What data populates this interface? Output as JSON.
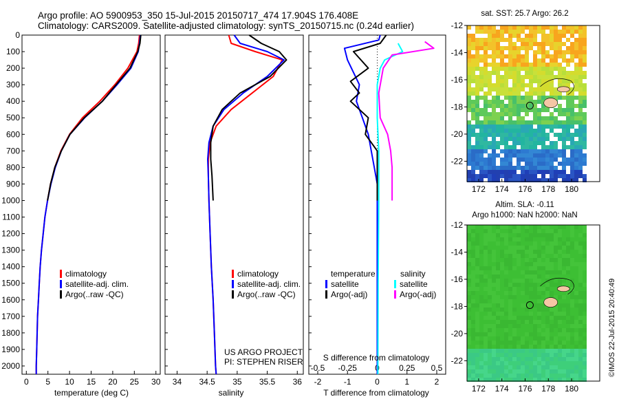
{
  "header": {
    "line1": "Argo profile: AO 5900953_350 15-Jul-2015 20150717_474 17.904S 176.408E",
    "line2": "Climatology: CARS2009. Satellite-adjusted climatology: synTS_20150715.nc (0.24d earlier)"
  },
  "credit": "©IMOS 22-Jul-2015 20:40:49",
  "project": {
    "line1": "US ARGO PROJECT",
    "line2": "PI: STEPHEN RISER"
  },
  "colors": {
    "climatology": "#ff0000",
    "satellite": "#0000ff",
    "argo": "#000000",
    "sal_satellite": "#00ffff",
    "sal_argo": "#ff00ff",
    "land": "#f5c6a5"
  },
  "chart_data": [
    {
      "type": "line",
      "xlabel": "temperature (deg C)",
      "ylabel": "",
      "xlim": [
        -1,
        31
      ],
      "ylim": [
        2050,
        0
      ],
      "xticks": [
        0,
        5,
        10,
        15,
        20,
        25,
        30
      ],
      "yticks": [
        0,
        100,
        200,
        300,
        400,
        500,
        600,
        700,
        800,
        900,
        1000,
        1100,
        1200,
        1300,
        1400,
        1500,
        1600,
        1700,
        1800,
        1900,
        2000
      ],
      "legend": [
        "climatology",
        "satellite-adj. clim.",
        "Argo(..raw -QC)"
      ],
      "series": [
        {
          "name": "climatology",
          "color": "#ff0000",
          "points": [
            [
              26.2,
              0
            ],
            [
              26.0,
              50
            ],
            [
              25.6,
              100
            ],
            [
              23.5,
              200
            ],
            [
              20.5,
              300
            ],
            [
              17.0,
              400
            ],
            [
              13.0,
              500
            ],
            [
              10.0,
              600
            ],
            [
              8.0,
              700
            ],
            [
              6.6,
              800
            ],
            [
              5.6,
              900
            ],
            [
              4.9,
              1000
            ],
            [
              4.3,
              1100
            ],
            [
              3.9,
              1200
            ],
            [
              3.5,
              1300
            ],
            [
              3.2,
              1400
            ],
            [
              3.0,
              1500
            ],
            [
              2.8,
              1600
            ],
            [
              2.6,
              1700
            ],
            [
              2.5,
              1800
            ],
            [
              2.4,
              1900
            ],
            [
              2.3,
              2000
            ],
            [
              2.3,
              2050
            ]
          ]
        },
        {
          "name": "satellite-adj. clim.",
          "color": "#0000ff",
          "points": [
            [
              26.4,
              0
            ],
            [
              26.2,
              50
            ],
            [
              25.9,
              100
            ],
            [
              24.2,
              200
            ],
            [
              21.0,
              300
            ],
            [
              17.6,
              400
            ],
            [
              13.5,
              500
            ],
            [
              10.1,
              600
            ],
            [
              8.1,
              700
            ],
            [
              6.7,
              800
            ],
            [
              5.7,
              900
            ],
            [
              4.9,
              1000
            ],
            [
              4.3,
              1100
            ],
            [
              3.9,
              1200
            ],
            [
              3.5,
              1300
            ],
            [
              3.2,
              1400
            ],
            [
              3.0,
              1500
            ],
            [
              2.8,
              1600
            ],
            [
              2.6,
              1700
            ],
            [
              2.5,
              1800
            ],
            [
              2.4,
              1900
            ],
            [
              2.3,
              2000
            ],
            [
              2.3,
              2050
            ]
          ]
        },
        {
          "name": "Argo(..raw -QC)",
          "color": "#000000",
          "points": [
            [
              26.5,
              0
            ],
            [
              26.3,
              50
            ],
            [
              25.8,
              100
            ],
            [
              24.0,
              200
            ],
            [
              20.8,
              300
            ],
            [
              17.6,
              400
            ],
            [
              13.4,
              500
            ],
            [
              10.1,
              600
            ],
            [
              8.1,
              700
            ],
            [
              6.6,
              800
            ],
            [
              5.6,
              900
            ],
            [
              4.9,
              1000
            ]
          ]
        }
      ]
    },
    {
      "type": "line",
      "xlabel": "salinity",
      "ylabel": "",
      "xlim": [
        33.8,
        36.1
      ],
      "ylim": [
        2050,
        0
      ],
      "xticks": [
        34,
        34.5,
        35,
        35.5,
        36
      ],
      "legend": [
        "climatology",
        "satellite-adj. clim.",
        "Argo(..raw -QC)"
      ],
      "series": [
        {
          "name": "climatology",
          "color": "#ff0000",
          "points": [
            [
              34.86,
              0
            ],
            [
              34.9,
              50
            ],
            [
              35.3,
              100
            ],
            [
              35.75,
              150
            ],
            [
              35.6,
              250
            ],
            [
              35.25,
              350
            ],
            [
              34.9,
              450
            ],
            [
              34.65,
              550
            ],
            [
              34.55,
              650
            ],
            [
              34.52,
              750
            ],
            [
              34.52,
              850
            ],
            [
              34.53,
              1000
            ],
            [
              34.55,
              1200
            ],
            [
              34.57,
              1400
            ],
            [
              34.6,
              1600
            ],
            [
              34.62,
              1800
            ],
            [
              34.64,
              2000
            ],
            [
              34.65,
              2050
            ]
          ]
        },
        {
          "name": "satellite-adj. clim.",
          "color": "#0000ff",
          "points": [
            [
              34.95,
              0
            ],
            [
              35.05,
              50
            ],
            [
              35.5,
              100
            ],
            [
              35.78,
              150
            ],
            [
              35.5,
              250
            ],
            [
              35.1,
              350
            ],
            [
              34.78,
              450
            ],
            [
              34.6,
              550
            ],
            [
              34.53,
              650
            ],
            [
              34.51,
              750
            ],
            [
              34.52,
              850
            ],
            [
              34.53,
              1000
            ],
            [
              34.55,
              1200
            ],
            [
              34.57,
              1400
            ],
            [
              34.6,
              1600
            ],
            [
              34.62,
              1800
            ],
            [
              34.64,
              2000
            ],
            [
              34.65,
              2050
            ]
          ]
        },
        {
          "name": "Argo(..raw -QC)",
          "color": "#000000",
          "points": [
            [
              35.2,
              0
            ],
            [
              35.4,
              50
            ],
            [
              35.7,
              100
            ],
            [
              35.82,
              150
            ],
            [
              35.55,
              250
            ],
            [
              35.05,
              350
            ],
            [
              34.75,
              450
            ],
            [
              34.6,
              550
            ],
            [
              34.56,
              650
            ],
            [
              34.56,
              750
            ],
            [
              34.58,
              850
            ],
            [
              34.6,
              1000
            ]
          ]
        }
      ]
    },
    {
      "type": "line",
      "xlabel": "T difference from climatology",
      "xlabel_top": "S difference from climatology",
      "xlim": [
        -2.3,
        2.3
      ],
      "ylim": [
        2050,
        0
      ],
      "xticks": [
        -2,
        -1,
        0,
        1,
        2
      ],
      "xticks_top": [
        -0.5,
        -0.25,
        0,
        0.25,
        0.5
      ],
      "legend": [
        "temperature",
        "satellite",
        "Argo(-adj)",
        "salinity",
        "satellite",
        "Argo(-adj)"
      ],
      "series": [
        {
          "name": "satellite",
          "color": "#0000ff",
          "points": [
            [
              0.1,
              0
            ],
            [
              0.05,
              30
            ],
            [
              -1.1,
              80
            ],
            [
              -1.0,
              150
            ],
            [
              -0.6,
              300
            ],
            [
              -0.7,
              400
            ],
            [
              -0.5,
              500
            ],
            [
              -0.3,
              600
            ],
            [
              -0.2,
              700
            ],
            [
              -0.1,
              800
            ],
            [
              0,
              900
            ],
            [
              0,
              1000
            ],
            [
              0,
              1200
            ],
            [
              0,
              1500
            ],
            [
              0,
              2050
            ]
          ]
        },
        {
          "name": "Argo(-adj)",
          "color": "#000000",
          "points": [
            [
              0.3,
              0
            ],
            [
              0.1,
              50
            ],
            [
              -0.8,
              100
            ],
            [
              -0.3,
              200
            ],
            [
              -0.9,
              280
            ],
            [
              -0.6,
              350
            ],
            [
              -0.9,
              400
            ],
            [
              -0.3,
              500
            ],
            [
              -0.4,
              600
            ],
            [
              0,
              700
            ],
            [
              0,
              1000
            ]
          ]
        },
        {
          "name": "satellite",
          "color": "#00ffff",
          "points": [
            [
              0.7,
              50
            ],
            [
              0.85,
              100
            ],
            [
              0.25,
              150
            ],
            [
              0.1,
              200
            ],
            [
              0,
              300
            ],
            [
              0,
              500
            ],
            [
              0.05,
              700
            ],
            [
              0.05,
              900
            ],
            [
              0.05,
              1000
            ],
            [
              0.03,
              1500
            ],
            [
              0.02,
              2050
            ]
          ]
        },
        {
          "name": "Argo(-adj)",
          "color": "#ff00ff",
          "points": [
            [
              1.6,
              40
            ],
            [
              1.9,
              80
            ],
            [
              0.5,
              120
            ],
            [
              0.2,
              200
            ],
            [
              0.05,
              350
            ],
            [
              0.1,
              500
            ],
            [
              0.35,
              600
            ],
            [
              0.45,
              700
            ],
            [
              0.5,
              800
            ],
            [
              0.5,
              900
            ],
            [
              0.5,
              1000
            ]
          ]
        }
      ]
    }
  ],
  "maps": {
    "sst": {
      "title": "sat. SST: 25.7 Argo: 26.2",
      "yticks": [
        -12,
        -14,
        -16,
        -18,
        -20,
        -22
      ],
      "xticks": [
        172,
        174,
        176,
        178,
        180
      ]
    },
    "sla": {
      "title1": "Altim. SLA: -0.11",
      "title2": "Argo h1000: NaN h2000: NaN",
      "yticks": [
        -12,
        -14,
        -16,
        -18,
        -20,
        -22
      ],
      "xticks": [
        172,
        174,
        176,
        178,
        180
      ]
    }
  }
}
